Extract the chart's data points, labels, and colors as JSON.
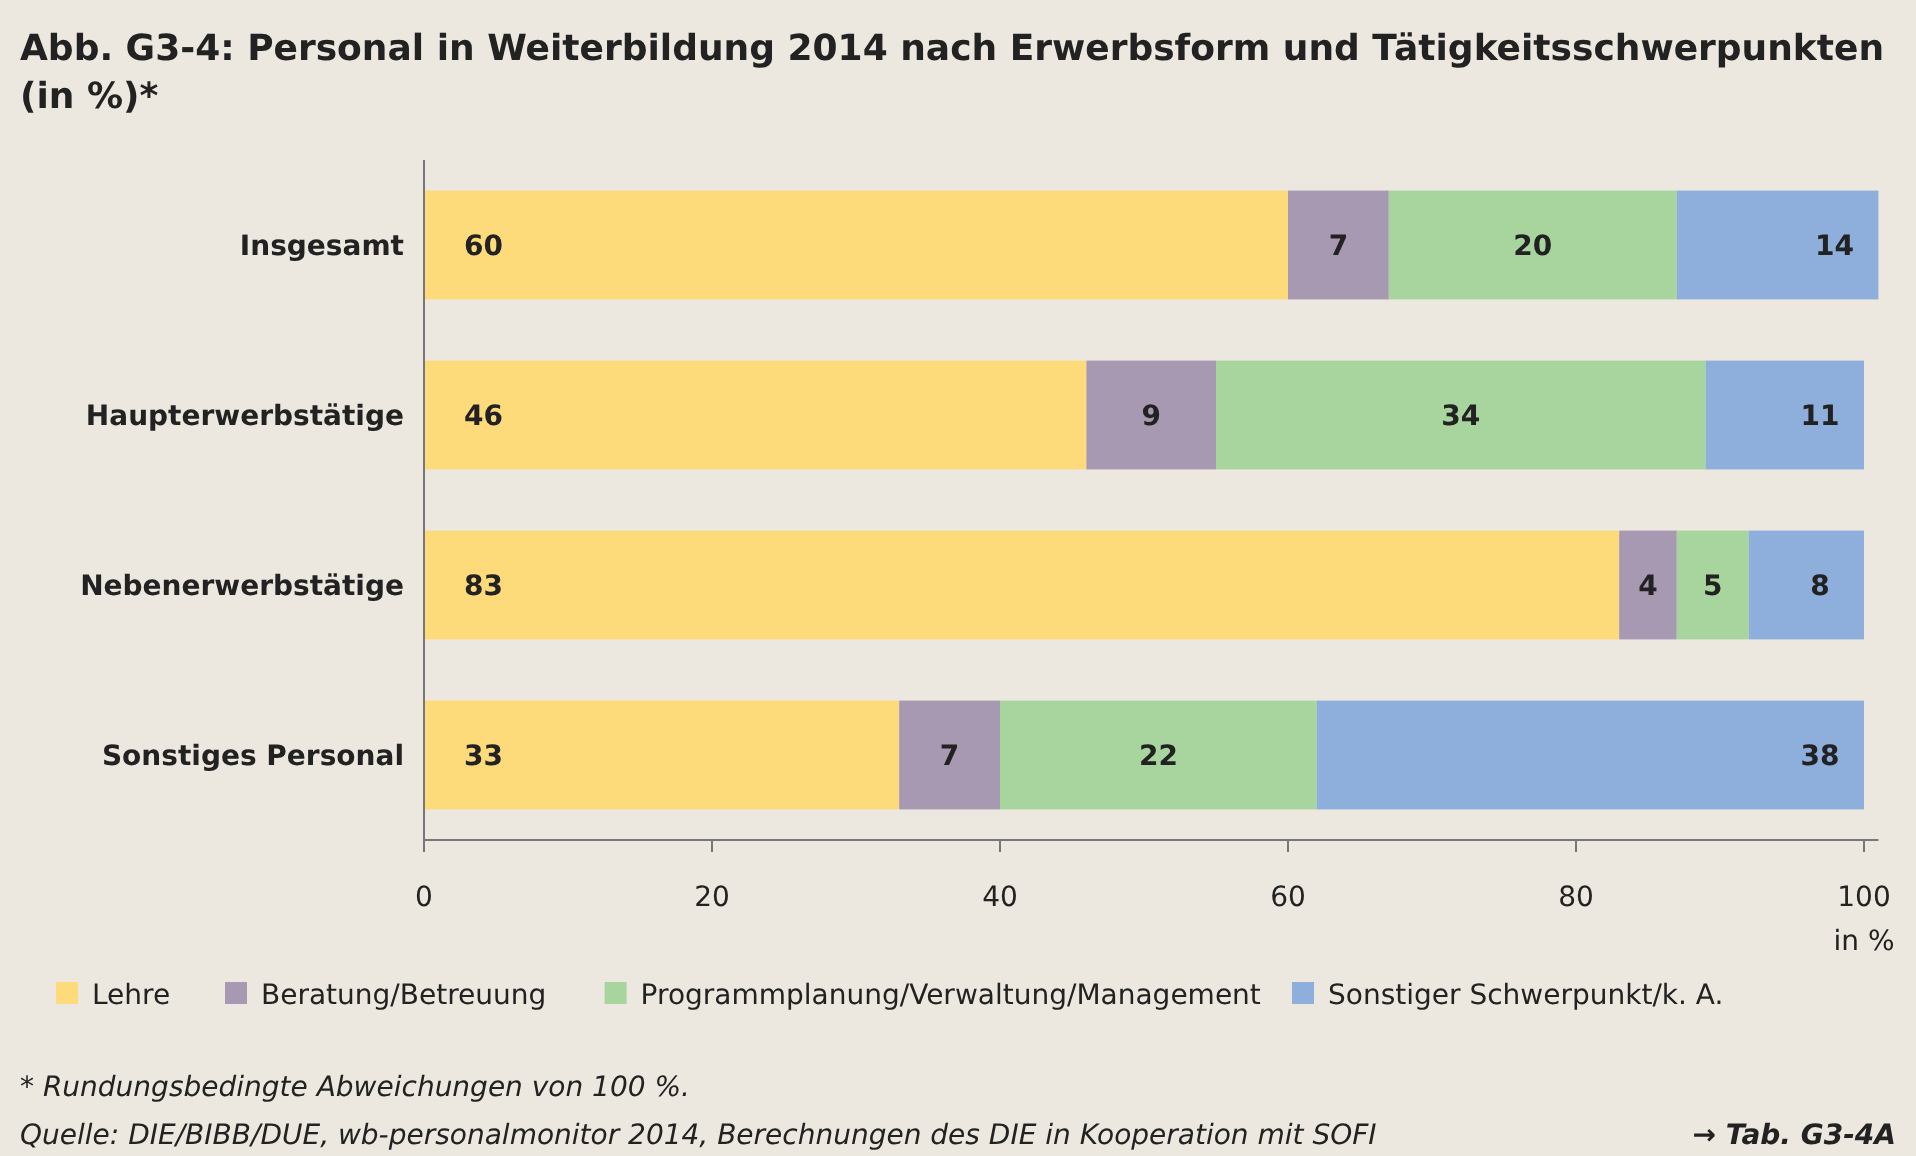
{
  "chart_data": {
    "type": "bar",
    "orientation": "horizontal",
    "stacked": true,
    "title": "Abb. G3-4:  Personal in Weiterbildung 2014 nach Erwerbsform und Tätigkeitsschwerpunkten (in %)*",
    "xlabel": "in %",
    "categories": [
      "Insgesamt",
      "Haupterwerbstätige",
      "Nebenerwerbstätige",
      "Sonstiges Personal"
    ],
    "series": [
      {
        "name": "Lehre",
        "color": "#fedb7a",
        "values": [
          60,
          46,
          83,
          33
        ]
      },
      {
        "name": "Beratung/Betreuung",
        "color": "#a899b3",
        "values": [
          7,
          9,
          4,
          7
        ]
      },
      {
        "name": "Programmplanung/Verwaltung/Management",
        "color": "#a8d59e",
        "values": [
          20,
          34,
          5,
          22
        ]
      },
      {
        "name": "Sonstiger Schwerpunkt/k. A.",
        "color": "#8eaedb",
        "values": [
          14,
          11,
          8,
          38
        ]
      }
    ],
    "xlim": [
      0,
      101
    ],
    "xticks": [
      0,
      20,
      40,
      60,
      80,
      100
    ],
    "grid": false,
    "legend": "bottom",
    "data_labels": true,
    "annotations": [
      "*  Rundungsbedingte Abweichungen von 100 %.",
      "Quelle: DIE/BIBB/DUE, wb-personalmonitor 2014, Berechnungen des DIE in Kooperation mit SOFI",
      "→ Tab. G3-4A"
    ]
  }
}
